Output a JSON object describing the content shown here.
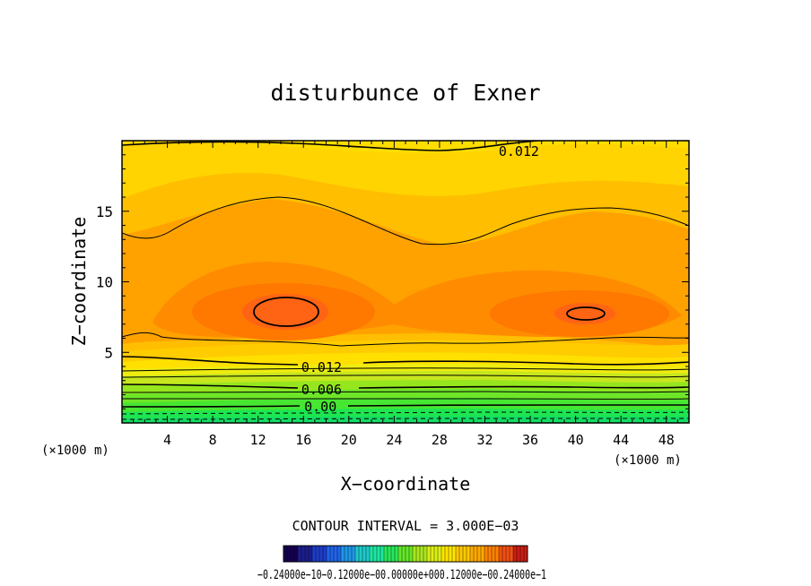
{
  "chart_data": {
    "type": "heatmap",
    "title": "disturbunce of Exner",
    "xlabel": "X−coordinate",
    "ylabel": "Z−coordinate",
    "x_unit": "(×1000 m)",
    "y_unit": "(×1000 m)",
    "xlim": [
      0,
      50
    ],
    "ylim": [
      0,
      20
    ],
    "x_ticks": [
      4,
      8,
      12,
      16,
      20,
      24,
      28,
      32,
      36,
      40,
      44,
      48
    ],
    "y_ticks": [
      5,
      10,
      15
    ],
    "contour_interval_text": "CONTOUR INTERVAL = 3.000E−03",
    "contour_labels": [
      {
        "text": "0.012",
        "x": 35,
        "y": 19.3
      },
      {
        "text": "0.012",
        "x": 17.6,
        "y": 4.0
      },
      {
        "text": "0.006",
        "x": 17.6,
        "y": 2.4
      },
      {
        "text": "0.00",
        "x": 17.5,
        "y": 1.2
      }
    ],
    "colorbar_labels_text": "−0.24000e−10−0.12000e−00.00000e+000.12000e−00.24000e−1",
    "colorbar_colors": [
      "#140050",
      "#1c1e8c",
      "#1e3cc8",
      "#1e64e6",
      "#1e96e6",
      "#1ec8c8",
      "#1ee6a0",
      "#28e65a",
      "#64e628",
      "#aae61e",
      "#dcee14",
      "#ffe600",
      "#ffc800",
      "#ffaa00",
      "#ff8200",
      "#f05014",
      "#c81e14"
    ]
  }
}
